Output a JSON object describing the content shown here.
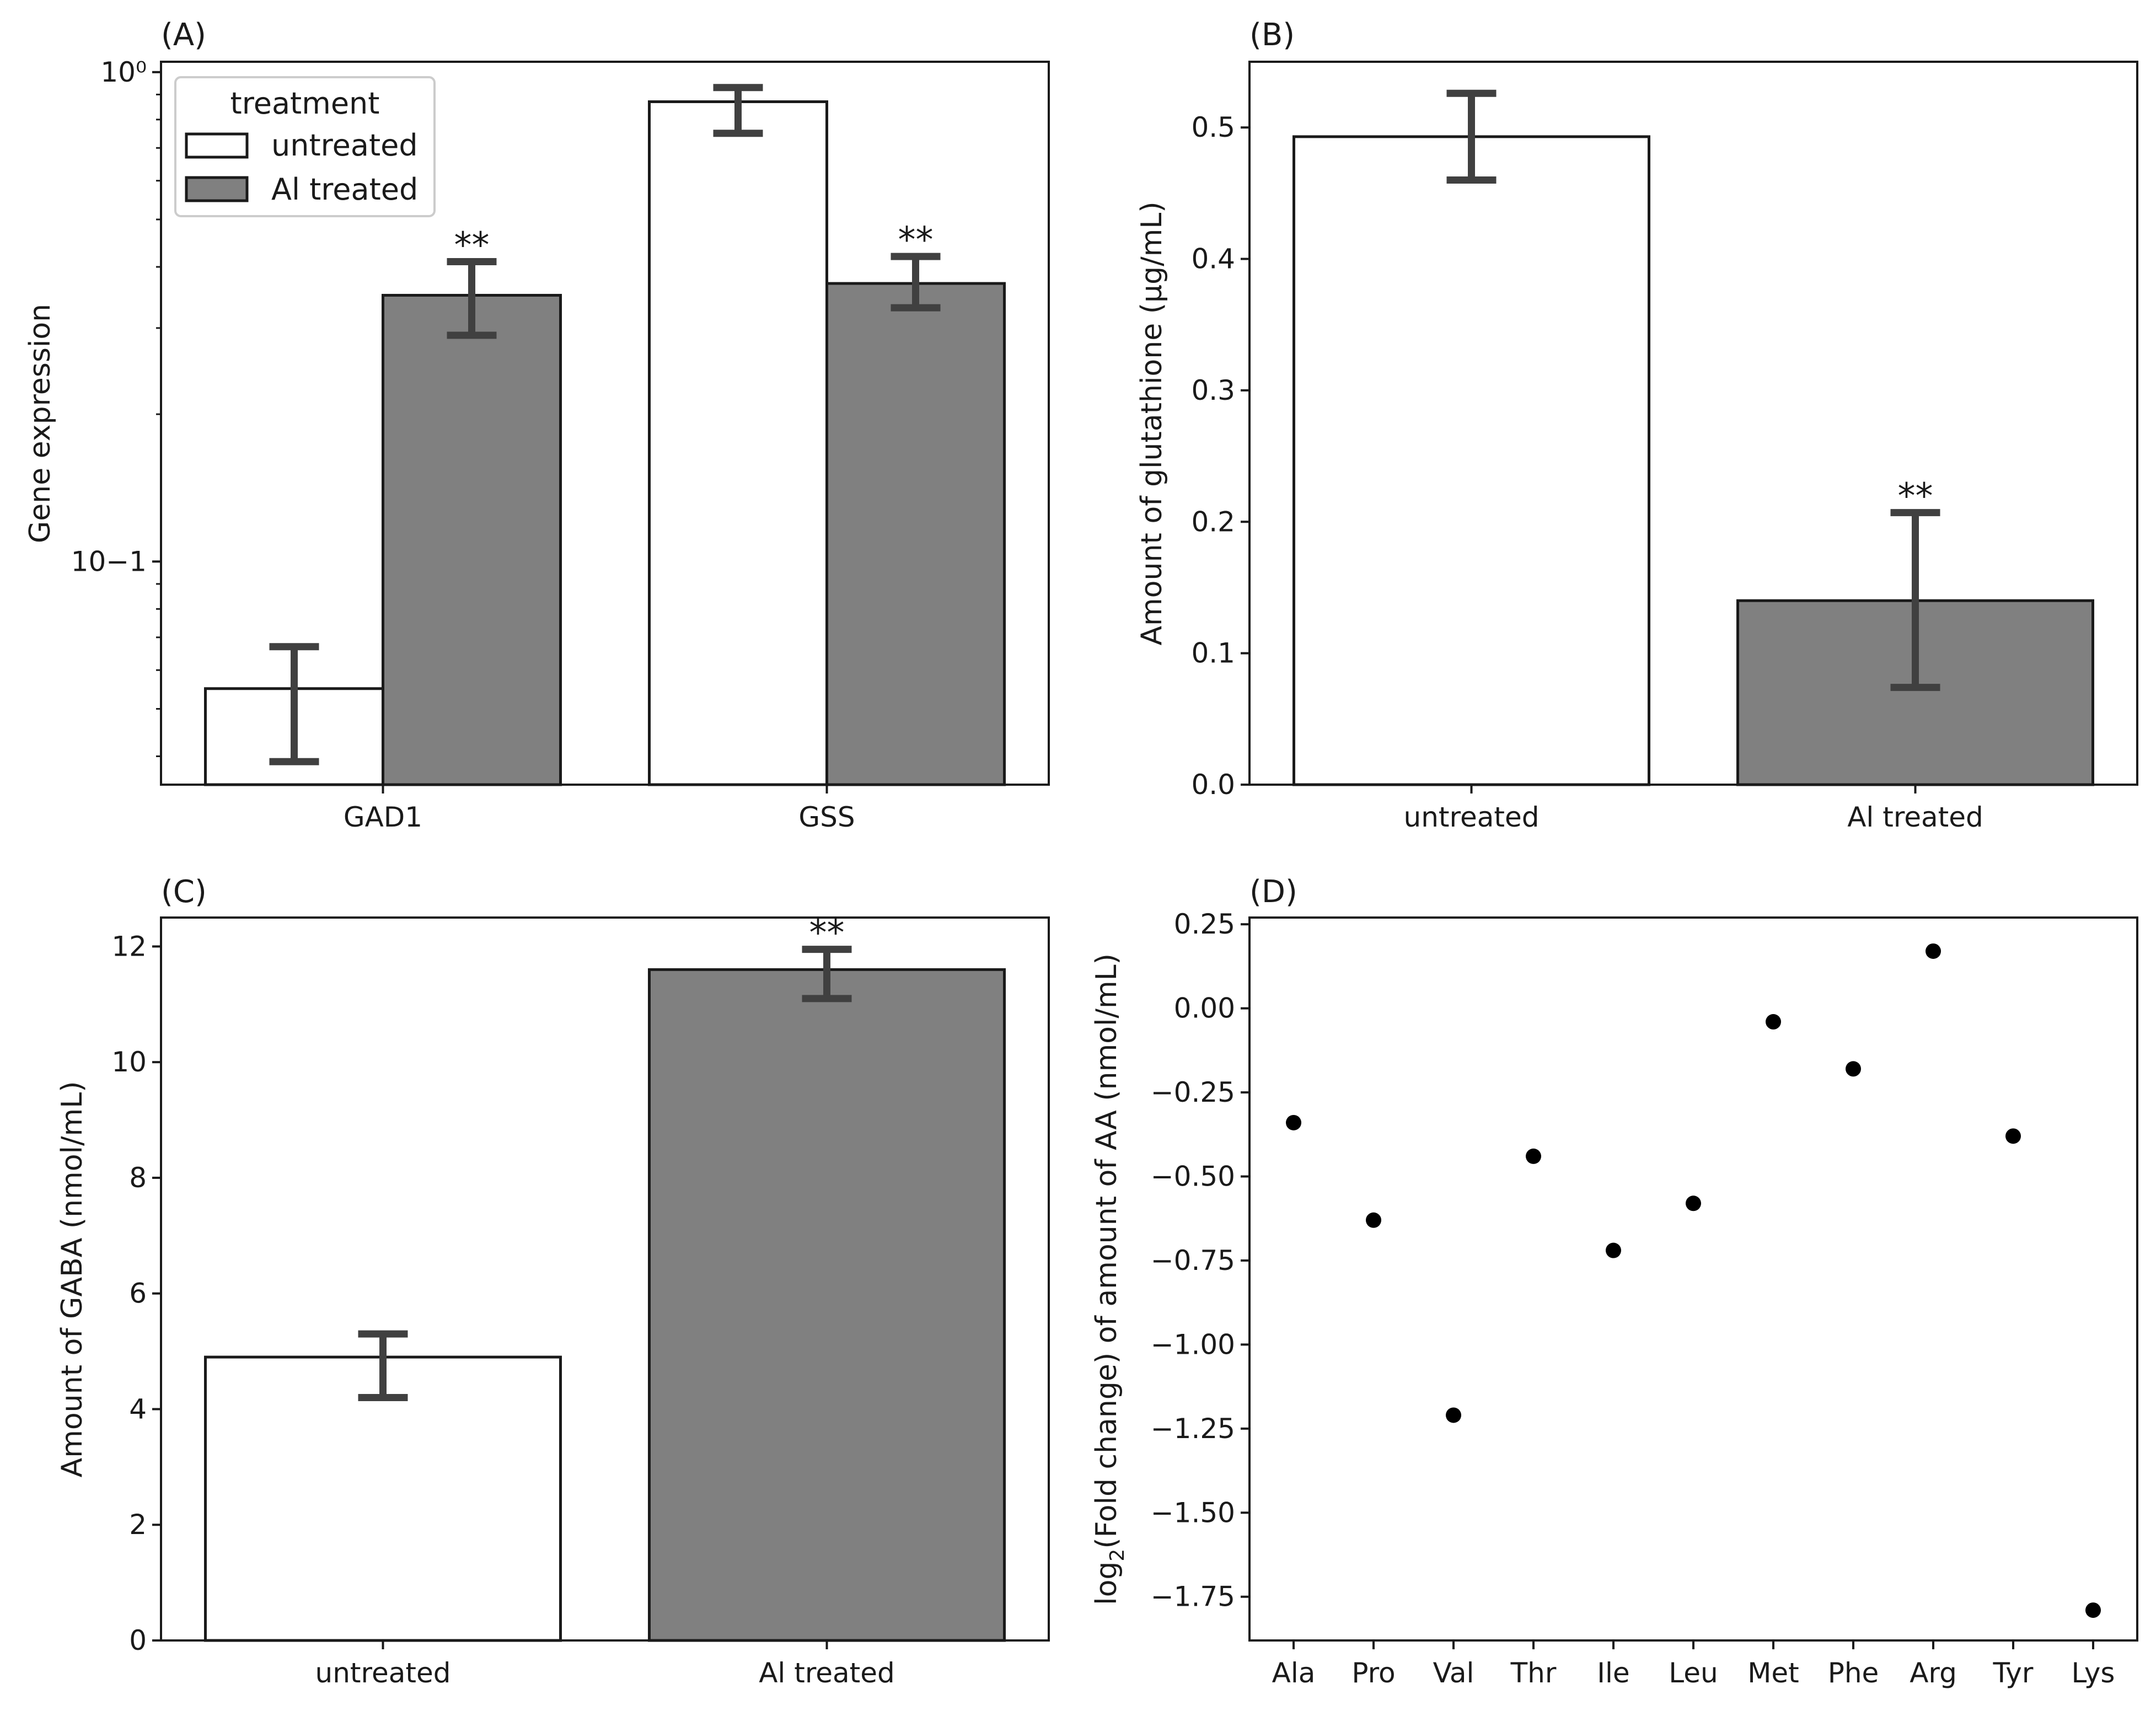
{
  "colors": {
    "untreated": "#ffffff",
    "treated": "#808080",
    "error": "#404040",
    "point": "#000000"
  },
  "chart_data": [
    {
      "panel": "(A)",
      "type": "bar",
      "scale": "log",
      "categories": [
        "GAD1",
        "GSS"
      ],
      "series": [
        {
          "name": "untreated",
          "values": [
            0.055,
            0.87
          ],
          "err_low": [
            0.039,
            0.75
          ],
          "err_high": [
            0.067,
            0.93
          ],
          "sig": [
            "",
            ""
          ]
        },
        {
          "name": "Al treated",
          "values": [
            0.35,
            0.37
          ],
          "err_low": [
            0.29,
            0.33
          ],
          "err_high": [
            0.41,
            0.42
          ],
          "sig": [
            "**",
            "**"
          ]
        }
      ],
      "ylabel": "Gene expression",
      "ylim": [
        0.035,
        1.05
      ],
      "yticks": [
        0.1,
        1.0
      ],
      "ytick_labels": [
        "10−1",
        "10⁰"
      ],
      "legend": {
        "title": "treatment",
        "entries": [
          "untreated",
          "Al treated"
        ],
        "position": "upper-left"
      }
    },
    {
      "panel": "(B)",
      "type": "bar",
      "categories": [
        "untreated",
        "Al treated"
      ],
      "values": [
        0.493,
        0.14
      ],
      "err_low": [
        0.46,
        0.074
      ],
      "err_high": [
        0.526,
        0.207
      ],
      "sig": [
        "",
        "**"
      ],
      "ylabel": "Amount of glutathione (μg/mL)",
      "ylim": [
        0,
        0.55
      ],
      "yticks": [
        0.0,
        0.1,
        0.2,
        0.3,
        0.4,
        0.5
      ],
      "ytick_labels": [
        "0.0",
        "0.1",
        "0.2",
        "0.3",
        "0.4",
        "0.5"
      ]
    },
    {
      "panel": "(C)",
      "type": "bar",
      "categories": [
        "untreated",
        "Al treated"
      ],
      "values": [
        4.9,
        11.6
      ],
      "err_low": [
        4.2,
        11.1
      ],
      "err_high": [
        5.3,
        11.95
      ],
      "sig": [
        "",
        "**"
      ],
      "ylabel": "Amount of GABA (nmol/mL)",
      "ylim": [
        0,
        12.5
      ],
      "yticks": [
        0,
        2,
        4,
        6,
        8,
        10,
        12
      ],
      "ytick_labels": [
        "0",
        "2",
        "4",
        "6",
        "8",
        "10",
        "12"
      ]
    },
    {
      "panel": "(D)",
      "type": "scatter",
      "categories": [
        "Ala",
        "Pro",
        "Val",
        "Thr",
        "Ile",
        "Leu",
        "Met",
        "Phe",
        "Arg",
        "Tyr",
        "Lys"
      ],
      "values": [
        -0.34,
        -0.63,
        -1.21,
        -0.44,
        -0.72,
        -0.58,
        -0.04,
        -0.18,
        0.17,
        -0.38,
        -1.79
      ],
      "ylabel_main": "log",
      "ylabel_sub": "2",
      "ylabel_rest": "(Fold change) of amount of AA (nmol/mL)",
      "ylim": [
        -1.88,
        0.27
      ],
      "yticks": [
        0.25,
        0.0,
        -0.25,
        -0.5,
        -0.75,
        -1.0,
        -1.25,
        -1.5,
        -1.75
      ],
      "ytick_labels": [
        "0.25",
        "0.00",
        "−0.25",
        "−0.50",
        "−0.75",
        "−1.00",
        "−1.25",
        "−1.50",
        "−1.75"
      ]
    }
  ]
}
